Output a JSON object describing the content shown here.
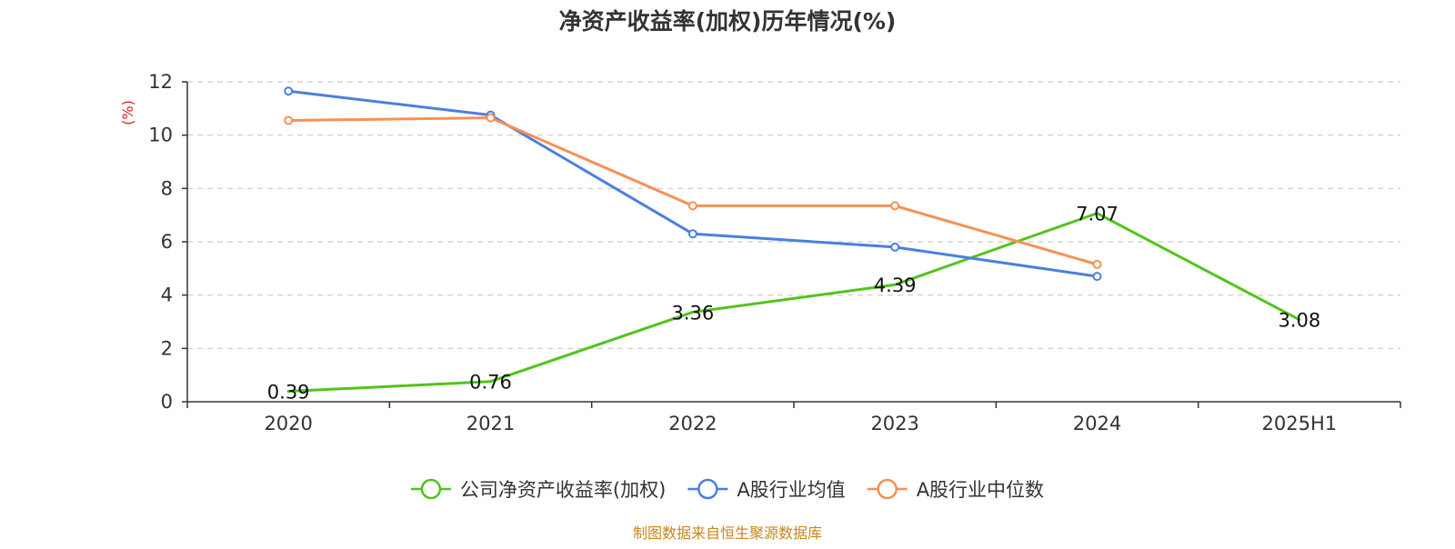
{
  "chart_data": {
    "type": "line",
    "title": "净资产收益率(加权)历年情况(%)",
    "ylabel": "(%)",
    "xlabel": "",
    "categories": [
      "2020",
      "2021",
      "2022",
      "2023",
      "2024",
      "2025H1"
    ],
    "ylim": [
      0,
      12
    ],
    "yticks": [
      0,
      2,
      4,
      6,
      8,
      10,
      12
    ],
    "grid": true,
    "legend_position": "bottom-center",
    "series": [
      {
        "name": "公司净资产收益率(加权)",
        "color": "#52c41a",
        "values": [
          0.39,
          0.76,
          3.36,
          4.39,
          7.07,
          3.08
        ],
        "labels": [
          "0.39",
          "0.76",
          "3.36",
          "4.39",
          "7.07",
          "3.08"
        ],
        "show_points": false,
        "show_labels": true
      },
      {
        "name": "A股行业均值",
        "color": "#4a7fe0",
        "values": [
          11.65,
          10.75,
          6.3,
          5.8,
          4.7,
          null
        ],
        "show_points": true,
        "show_labels": false
      },
      {
        "name": "A股行业中位数",
        "color": "#f79055",
        "values": [
          10.55,
          10.65,
          7.35,
          7.35,
          5.15,
          null
        ],
        "show_points": true,
        "show_labels": false
      }
    ],
    "source": "制图数据来自恒生聚源数据库"
  }
}
